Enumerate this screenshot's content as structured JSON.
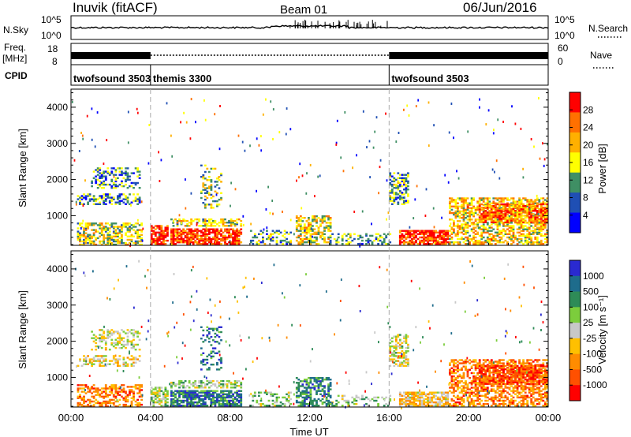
{
  "header": {
    "station": "Inuvik (fitACF)",
    "beam": "Beam 01",
    "date": "06/Jun/2016"
  },
  "sky_panel": {
    "left_label": "N.Sky",
    "left_ticks": [
      "10^5",
      "10^0"
    ],
    "right_ticks": [
      "10^5",
      "10^0"
    ],
    "right_label": "N.Search"
  },
  "freq_panel": {
    "left_label_1": "Freq.",
    "left_label_2": "[MHz]",
    "left_ticks": [
      "18",
      "8"
    ],
    "right_ticks": [
      "60",
      "0"
    ],
    "right_label": "Nave"
  },
  "cpid_panel": {
    "label": "CPID",
    "segments": [
      {
        "name": "twofsound 3503",
        "start_h": 0,
        "end_h": 4
      },
      {
        "name": "themis 3300",
        "start_h": 4,
        "end_h": 16
      },
      {
        "name": "twofsound 3503",
        "start_h": 16,
        "end_h": 24
      }
    ]
  },
  "colors": {
    "power": [
      "#0000ff",
      "#1f4fb4",
      "#3f8f64",
      "#ffff00",
      "#ffb000",
      "#ff7000",
      "#ff0000"
    ],
    "velocity": [
      "#2a2ad0",
      "#1e6c8c",
      "#2e8b57",
      "#7ccd3c",
      "#c8c8c8",
      "#ffc000",
      "#ff8c00",
      "#ff5000",
      "#ff0000"
    ],
    "cpid_divider": "#aaaaaa"
  },
  "chart_data": [
    {
      "type": "heatmap",
      "name": "Power",
      "ylabel": "Slant Range [km]",
      "ylim": [
        180,
        4500
      ],
      "yticks": [
        "1000",
        "2000",
        "3000",
        "4000"
      ],
      "xlim": [
        0,
        24
      ],
      "colorbar": {
        "label": "Power [dB]",
        "ticks": [
          "4",
          "8",
          "12",
          "16",
          "20",
          "24",
          "28"
        ],
        "range": [
          0,
          32
        ]
      }
    },
    {
      "type": "heatmap",
      "name": "Velocity",
      "ylabel": "Slant Range [km]",
      "ylim": [
        180,
        4500
      ],
      "yticks": [
        "1000",
        "2000",
        "3000",
        "4000"
      ],
      "xlim": [
        0,
        24
      ],
      "xticks": [
        "00:00",
        "04:00",
        "08:00",
        "12:00",
        "16:00",
        "20:00",
        "00:00"
      ],
      "xlabel": "Time UT",
      "colorbar": {
        "label": "Velocity [m s⁻¹]",
        "ticks": [
          "1000",
          "500",
          "100",
          "25",
          "-25",
          "-100",
          "-500",
          "-1000"
        ],
        "range": [
          -1000,
          1000
        ]
      }
    }
  ]
}
